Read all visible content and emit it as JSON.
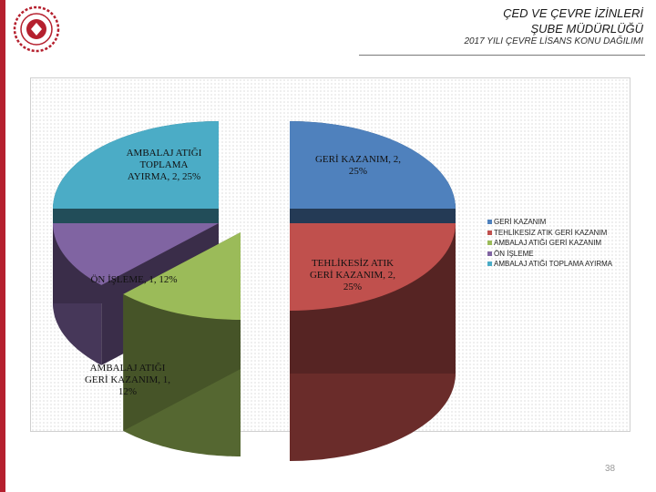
{
  "header": {
    "line1": "ÇED VE ÇEVRE İZİNLERİ",
    "line2": "ŞUBE MÜDÜRLÜĞÜ",
    "subtitle": "2017 YILI ÇEVRE LİSANS KONU DAĞILIMI"
  },
  "logo": {
    "icon": "ministry-seal-icon",
    "color": "#b5202e"
  },
  "page_number": "38",
  "colors": {
    "accent": "#b5202e"
  },
  "chart_data": {
    "type": "pie",
    "title": "",
    "series": [
      {
        "name": "GERİ KAZANIM",
        "value": 2,
        "percent": "25%",
        "color": "#4f81bd",
        "label": [
          "GERİ KAZANIM, 2,",
          "25%"
        ]
      },
      {
        "name": "TEHLİKESİZ ATIK GERİ KAZANIM",
        "value": 2,
        "percent": "25%",
        "color": "#c0504d",
        "label": [
          "TEHLİKESİZ ATIK",
          "GERİ KAZANIM, 2,",
          "25%"
        ]
      },
      {
        "name": "AMBALAJ ATIĞI GERİ KAZANIM",
        "value": 1,
        "percent": "12%",
        "color": "#9bbb59",
        "label": [
          "AMBALAJ ATIĞI",
          "GERİ KAZANIM, 1,",
          "12%"
        ]
      },
      {
        "name": "ÖN İŞLEME",
        "value": 1,
        "percent": "12%",
        "color": "#8064a2",
        "label": [
          "ÖN İŞLEME, 1, 12%"
        ]
      },
      {
        "name": "AMBALAJ ATIĞI TOPLAMA AYIRMA",
        "value": 2,
        "percent": "25%",
        "color": "#4bacc6",
        "label": [
          "AMBALAJ ATIĞI",
          "TOPLAMA",
          "AYIRMA, 2, 25%"
        ]
      }
    ],
    "legend": {
      "position": "right",
      "entries": [
        "GERİ KAZANIM",
        "TEHLİKESİZ ATIK GERİ KAZANIM",
        "AMBALAJ ATIĞI GERİ KAZANIM",
        "ÖN İŞLEME",
        "AMBALAJ ATIĞI TOPLAMA AYIRMA"
      ]
    }
  }
}
